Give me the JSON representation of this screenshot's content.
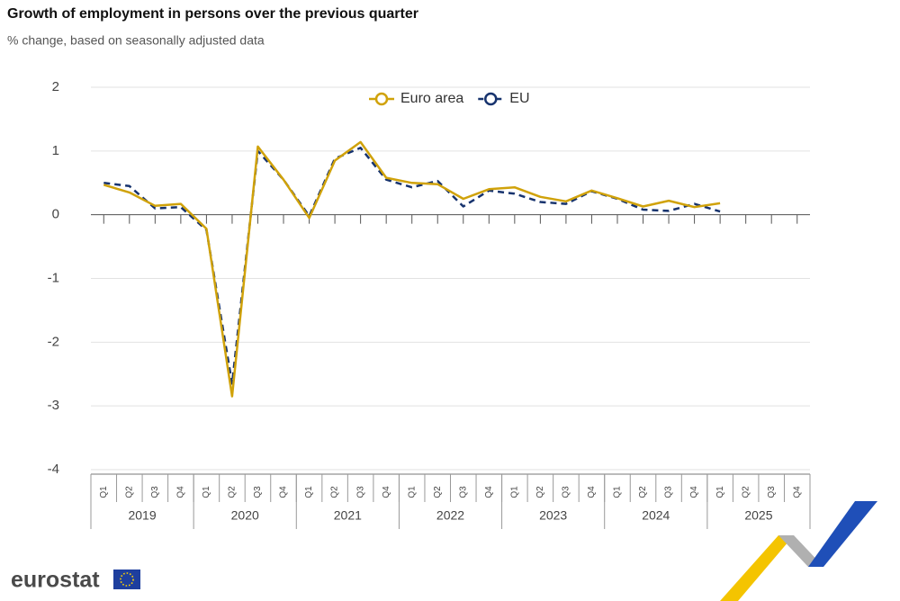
{
  "chart_data": {
    "type": "line",
    "title": "Growth of employment in persons over the previous quarter",
    "subtitle": "% change, based on seasonally adjusted data",
    "categories": [
      "Q1",
      "Q2",
      "Q3",
      "Q4",
      "Q1",
      "Q2",
      "Q3",
      "Q4",
      "Q1",
      "Q2",
      "Q3",
      "Q4",
      "Q1",
      "Q2",
      "Q3",
      "Q4",
      "Q1",
      "Q2",
      "Q3",
      "Q4",
      "Q1",
      "Q2",
      "Q3",
      "Q4",
      "Q1",
      "Q2",
      "Q3",
      "Q4"
    ],
    "category_groups": [
      "2019",
      "2020",
      "2021",
      "2022",
      "2023",
      "2024",
      "2025"
    ],
    "series": [
      {
        "name": "Euro area",
        "color": "#d0a20a",
        "line_style": "solid",
        "values": [
          0.47,
          0.35,
          0.14,
          0.17,
          -0.22,
          -2.85,
          1.07,
          0.55,
          -0.05,
          0.85,
          1.14,
          0.58,
          0.5,
          0.48,
          0.25,
          0.4,
          0.43,
          0.28,
          0.21,
          0.38,
          0.26,
          0.13,
          0.22,
          0.12,
          0.18,
          null,
          null,
          null
        ]
      },
      {
        "name": "EU",
        "color": "#17336e",
        "line_style": "dashed",
        "values": [
          0.5,
          0.45,
          0.1,
          0.12,
          -0.24,
          -2.65,
          1.0,
          0.55,
          -0.02,
          0.88,
          1.05,
          0.55,
          0.43,
          0.53,
          0.13,
          0.38,
          0.33,
          0.2,
          0.17,
          0.37,
          0.25,
          0.08,
          0.06,
          0.17,
          0.05,
          null,
          null,
          null
        ]
      }
    ],
    "ylim": [
      -4,
      2
    ],
    "yticks": [
      -4,
      -3,
      -2,
      -1,
      0,
      1,
      2
    ],
    "grid": true,
    "legend": "top"
  },
  "branding": {
    "logo": "eurostat"
  }
}
